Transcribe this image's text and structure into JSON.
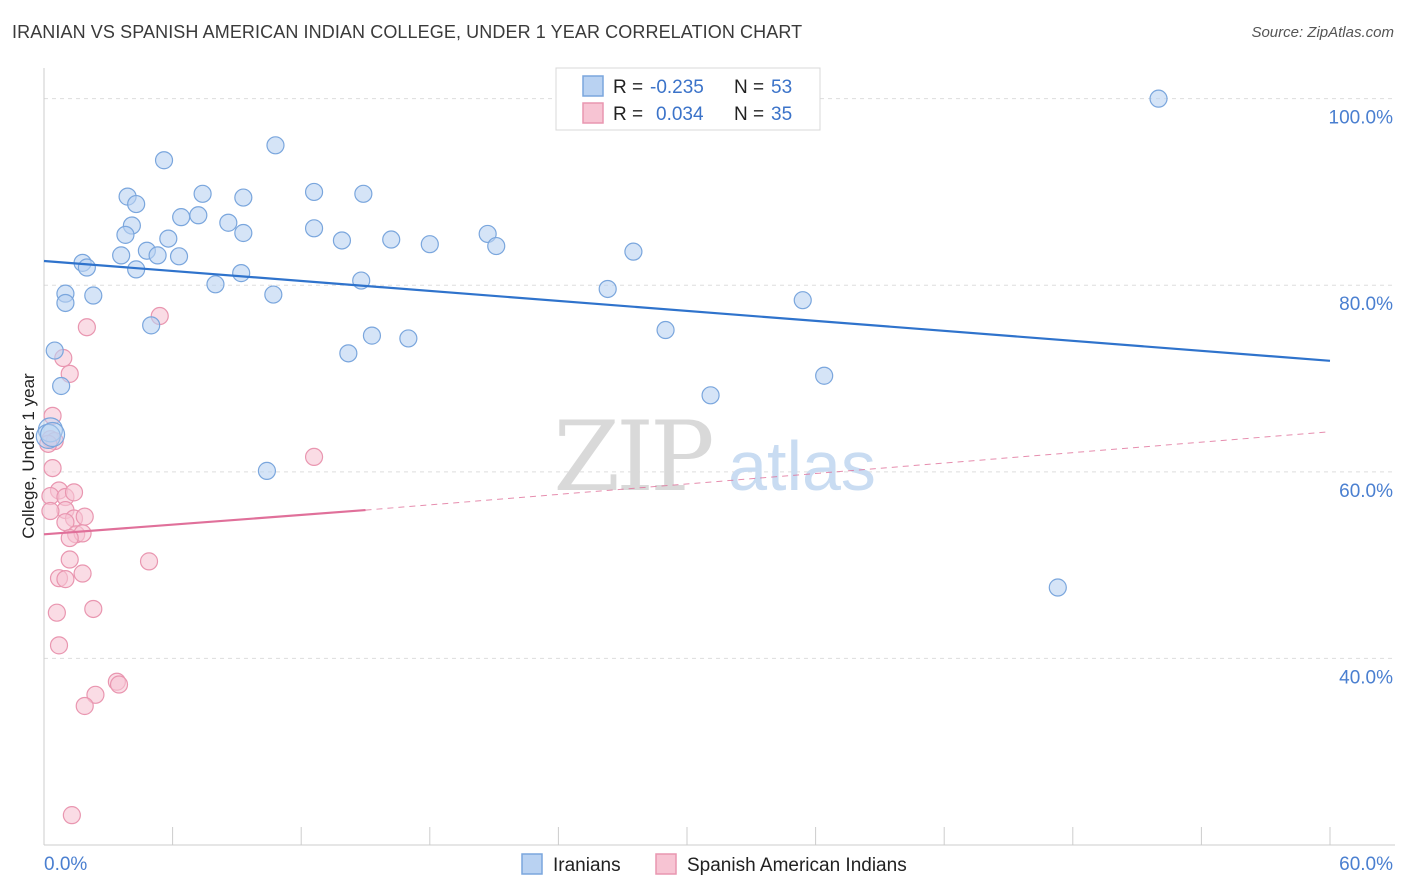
{
  "title": "IRANIAN VS SPANISH AMERICAN INDIAN COLLEGE, UNDER 1 YEAR CORRELATION CHART",
  "source": "Source: ZipAtlas.com",
  "watermark": {
    "zip": "ZIP",
    "atlas": "atlas"
  },
  "colors": {
    "blue_fill": "#b9d2f2",
    "blue_stroke": "#7aa6dd",
    "blue_line": "#2f73cc",
    "pink_fill": "#f7c4d3",
    "pink_stroke": "#e996b0",
    "pink_line": "#e0709a",
    "tick_text": "#4a7fd0",
    "grid": "#dddddd"
  },
  "legend": {
    "rows": [
      {
        "r_label": "R =",
        "r_value": "-0.235",
        "n_label": "N =",
        "n_value": "53"
      },
      {
        "r_label": "R =",
        "r_value": "0.034",
        "n_label": "N =",
        "n_value": "35"
      }
    ]
  },
  "bottom_legend": [
    "Iranians",
    "Spanish American Indians"
  ],
  "chart_data": {
    "type": "scatter",
    "title": "IRANIAN VS SPANISH AMERICAN INDIAN COLLEGE, UNDER 1 YEAR CORRELATION CHART",
    "xlabel": "",
    "ylabel": "College, Under 1 year",
    "xlim": [
      0,
      60
    ],
    "ylim": [
      20,
      102
    ],
    "x_tick_labels": [
      "0.0%",
      "60.0%"
    ],
    "y_tick_labels": [
      "100.0%",
      "80.0%",
      "60.0%",
      "40.0%"
    ],
    "y_ticks": [
      100,
      80,
      60,
      40
    ],
    "grid": true,
    "legend_position": "top-center",
    "series": [
      {
        "name": "Iranians",
        "r": -0.235,
        "n": 53,
        "trend": {
          "x": [
            0,
            60
          ],
          "y": [
            82.6,
            71.9
          ]
        },
        "points": [
          [
            52.0,
            100.0
          ],
          [
            10.8,
            95.0
          ],
          [
            5.6,
            93.4
          ],
          [
            7.4,
            89.8
          ],
          [
            12.6,
            90.0
          ],
          [
            3.9,
            89.5
          ],
          [
            9.3,
            89.4
          ],
          [
            14.9,
            89.8
          ],
          [
            4.3,
            88.7
          ],
          [
            7.2,
            87.5
          ],
          [
            6.4,
            87.3
          ],
          [
            8.6,
            86.7
          ],
          [
            4.1,
            86.4
          ],
          [
            3.8,
            85.4
          ],
          [
            12.6,
            86.1
          ],
          [
            9.3,
            85.6
          ],
          [
            5.8,
            85.0
          ],
          [
            4.8,
            83.7
          ],
          [
            5.3,
            83.2
          ],
          [
            3.6,
            83.2
          ],
          [
            16.2,
            84.9
          ],
          [
            13.9,
            84.8
          ],
          [
            18.0,
            84.4
          ],
          [
            20.7,
            85.5
          ],
          [
            21.1,
            84.2
          ],
          [
            27.5,
            83.6
          ],
          [
            6.3,
            83.1
          ],
          [
            1.8,
            82.4
          ],
          [
            2.0,
            81.9
          ],
          [
            4.3,
            81.7
          ],
          [
            9.2,
            81.3
          ],
          [
            8.0,
            80.1
          ],
          [
            14.8,
            80.5
          ],
          [
            1.0,
            79.1
          ],
          [
            1.0,
            78.1
          ],
          [
            2.3,
            78.9
          ],
          [
            10.7,
            79.0
          ],
          [
            26.3,
            79.6
          ],
          [
            35.4,
            78.4
          ],
          [
            5.0,
            75.7
          ],
          [
            15.3,
            74.6
          ],
          [
            17.0,
            74.3
          ],
          [
            29.0,
            75.2
          ],
          [
            0.5,
            73.0
          ],
          [
            14.2,
            72.7
          ],
          [
            36.4,
            70.3
          ],
          [
            0.8,
            69.2
          ],
          [
            31.1,
            68.2
          ],
          [
            10.4,
            60.1
          ],
          [
            47.3,
            47.6
          ],
          [
            0.3,
            64.5
          ],
          [
            0.2,
            63.8
          ],
          [
            0.4,
            64.0
          ]
        ]
      },
      {
        "name": "Spanish American Indians",
        "r": 0.034,
        "n": 35,
        "trend": {
          "x": [
            0,
            15
          ],
          "y": [
            53.3,
            55.9
          ]
        },
        "trend_dashed": {
          "x": [
            15,
            60
          ],
          "y": [
            55.9,
            64.3
          ]
        },
        "points": [
          [
            2.0,
            75.5
          ],
          [
            5.4,
            76.7
          ],
          [
            0.9,
            72.2
          ],
          [
            1.2,
            70.5
          ],
          [
            0.4,
            66.0
          ],
          [
            0.3,
            63.5
          ],
          [
            0.5,
            63.3
          ],
          [
            12.6,
            61.6
          ],
          [
            0.2,
            63.0
          ],
          [
            0.4,
            60.4
          ],
          [
            0.7,
            58.0
          ],
          [
            0.3,
            57.4
          ],
          [
            1.0,
            57.3
          ],
          [
            1.4,
            57.8
          ],
          [
            1.0,
            55.9
          ],
          [
            0.3,
            55.8
          ],
          [
            1.4,
            55.0
          ],
          [
            1.9,
            55.2
          ],
          [
            1.0,
            54.6
          ],
          [
            1.5,
            53.3
          ],
          [
            1.8,
            53.4
          ],
          [
            1.2,
            52.9
          ],
          [
            1.2,
            50.6
          ],
          [
            4.9,
            50.4
          ],
          [
            1.8,
            49.1
          ],
          [
            0.7,
            48.6
          ],
          [
            1.0,
            48.5
          ],
          [
            0.6,
            44.9
          ],
          [
            2.3,
            45.3
          ],
          [
            0.7,
            41.4
          ],
          [
            3.4,
            37.5
          ],
          [
            3.5,
            37.2
          ],
          [
            2.4,
            36.1
          ],
          [
            1.9,
            34.9
          ],
          [
            1.3,
            23.2
          ]
        ]
      }
    ]
  }
}
